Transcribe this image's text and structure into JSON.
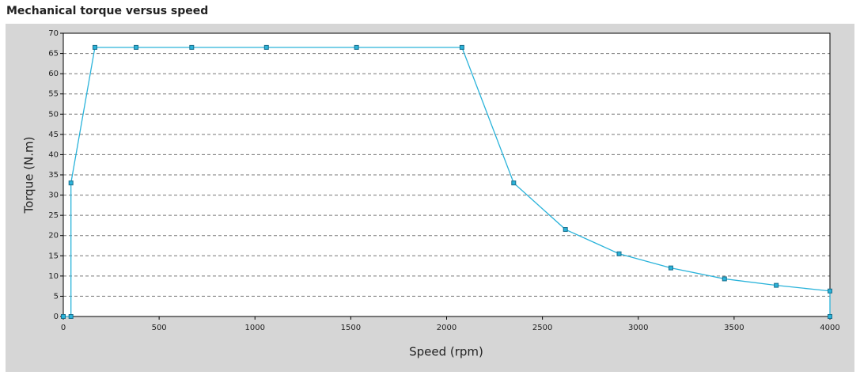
{
  "chart_data": {
    "type": "line",
    "title": "Mechanical torque versus speed",
    "xlabel": "Speed (rpm)",
    "ylabel": "Torque (N.m)",
    "x": [
      0,
      40,
      40,
      165,
      380,
      670,
      1060,
      1530,
      2080,
      2350,
      2620,
      2900,
      3170,
      3450,
      3720,
      4000,
      4000
    ],
    "series": [
      {
        "name": "Torque",
        "color": "#2ab3da",
        "values": [
          0,
          0,
          33,
          66.5,
          66.5,
          66.5,
          66.5,
          66.5,
          66.5,
          33,
          21.5,
          15.5,
          12,
          9.3,
          7.7,
          6.3,
          0
        ]
      }
    ],
    "xlim": [
      0,
      4000
    ],
    "xticks": [
      0,
      500,
      1000,
      1500,
      2000,
      2500,
      3000,
      3500,
      4000
    ],
    "ylim": [
      0,
      70
    ],
    "yticks": [
      0,
      5,
      10,
      15,
      20,
      25,
      30,
      35,
      40,
      45,
      50,
      55,
      60,
      65,
      70
    ],
    "grid": true
  }
}
